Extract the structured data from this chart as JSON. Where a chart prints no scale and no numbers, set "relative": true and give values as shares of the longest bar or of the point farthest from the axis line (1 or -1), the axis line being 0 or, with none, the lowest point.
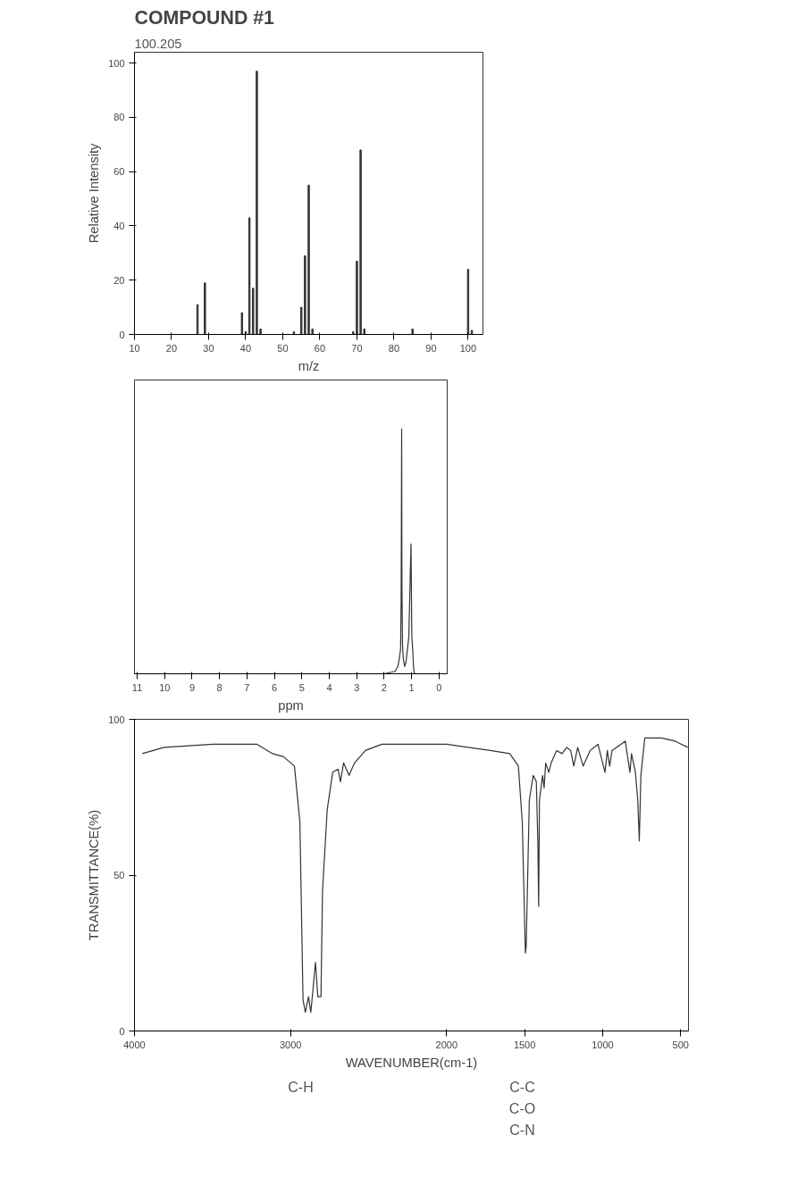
{
  "chart_data": [
    {
      "type": "bar",
      "title": "COMPOUND #1",
      "subtitle": "100.205",
      "xlabel": "m/z",
      "ylabel": "Relative Intensity",
      "x": [
        27,
        29,
        39,
        40,
        41,
        42,
        43,
        44,
        53,
        55,
        56,
        57,
        58,
        69,
        70,
        71,
        72,
        85,
        100,
        101
      ],
      "series": [
        {
          "color": "#333333",
          "values": [
            11,
            19,
            8,
            1,
            43,
            17,
            97,
            2,
            1,
            10,
            29,
            55,
            2,
            1,
            27,
            68,
            2,
            2,
            24,
            1.5
          ]
        }
      ],
      "xlim": [
        10,
        104
      ],
      "ylim": [
        0,
        104
      ],
      "xticks": [
        10,
        20,
        30,
        40,
        50,
        60,
        70,
        80,
        90,
        100
      ],
      "yticks": [
        0,
        20,
        40,
        60,
        80,
        100
      ]
    },
    {
      "type": "line",
      "xlabel": "ppm",
      "relative": true,
      "tick_labels": "x",
      "x": [
        11,
        2,
        1.6,
        1.5,
        1.45,
        1.4,
        1.38,
        1.37,
        1.36,
        1.355,
        1.35,
        1.33,
        1.3,
        1.25,
        1.2,
        1.1,
        1.02,
        0.99,
        0.97,
        0.95,
        0.93,
        0.91,
        0.89,
        0.86,
        0.82,
        0.75,
        0.6,
        -0.3
      ],
      "series": [
        {
          "color": "#333333",
          "values": [
            0,
            0,
            0.01,
            0.03,
            0.06,
            0.1,
            0.3,
            0.64,
            1.0,
            0.64,
            0.35,
            0.12,
            0.06,
            0.03,
            0.05,
            0.15,
            0.53,
            0.15,
            0.12,
            0.08,
            0.03,
            0.01,
            0,
            0,
            0,
            0,
            0,
            0
          ]
        }
      ],
      "xlim": [
        11.1,
        -0.3
      ],
      "xticks": [
        11,
        10,
        9,
        8,
        7,
        6,
        5,
        4,
        3,
        2,
        1,
        0
      ]
    },
    {
      "type": "line",
      "xlabel": "WAVENUMBER(cm-1)",
      "ylabel": "TRANSMITTANCE(%)",
      "x": [
        3950,
        3810,
        3495,
        3215,
        3115,
        3045,
        2975,
        2940,
        2920,
        2905,
        2885,
        2870,
        2840,
        2825,
        2805,
        2795,
        2765,
        2730,
        2695,
        2680,
        2660,
        2625,
        2590,
        2520,
        2415,
        2000,
        1720,
        1595,
        1540,
        1515,
        1495,
        1490,
        1470,
        1445,
        1425,
        1415,
        1410,
        1405,
        1385,
        1375,
        1365,
        1345,
        1330,
        1295,
        1260,
        1230,
        1205,
        1185,
        1160,
        1125,
        1080,
        1030,
        985,
        970,
        955,
        940,
        855,
        825,
        815,
        790,
        775,
        765,
        755,
        730,
        625,
        535,
        455
      ],
      "series": [
        {
          "color": "#333333",
          "values": [
            89,
            91,
            92,
            92,
            89,
            88,
            85,
            67,
            10,
            6,
            11,
            6,
            22,
            11,
            11,
            45,
            71,
            83,
            84,
            80,
            86,
            82,
            86,
            90,
            92,
            92,
            90,
            89,
            85,
            67,
            25,
            27,
            74,
            82,
            80,
            60,
            40,
            74,
            82,
            78,
            86,
            83,
            86,
            90,
            89,
            91,
            90,
            85,
            91,
            85,
            90,
            92,
            83,
            90,
            85,
            90,
            93,
            83,
            89,
            83,
            74,
            61,
            82,
            94,
            94,
            93,
            91
          ]
        }
      ],
      "xlim": [
        4000,
        450
      ],
      "ylim": [
        0,
        100
      ],
      "xticks": [
        4000,
        3000,
        2000,
        1500,
        1000,
        500
      ],
      "yticks": [
        0,
        50,
        100
      ],
      "annotations": [
        "C-H",
        "C-C",
        "C-O",
        "C-N"
      ]
    }
  ]
}
